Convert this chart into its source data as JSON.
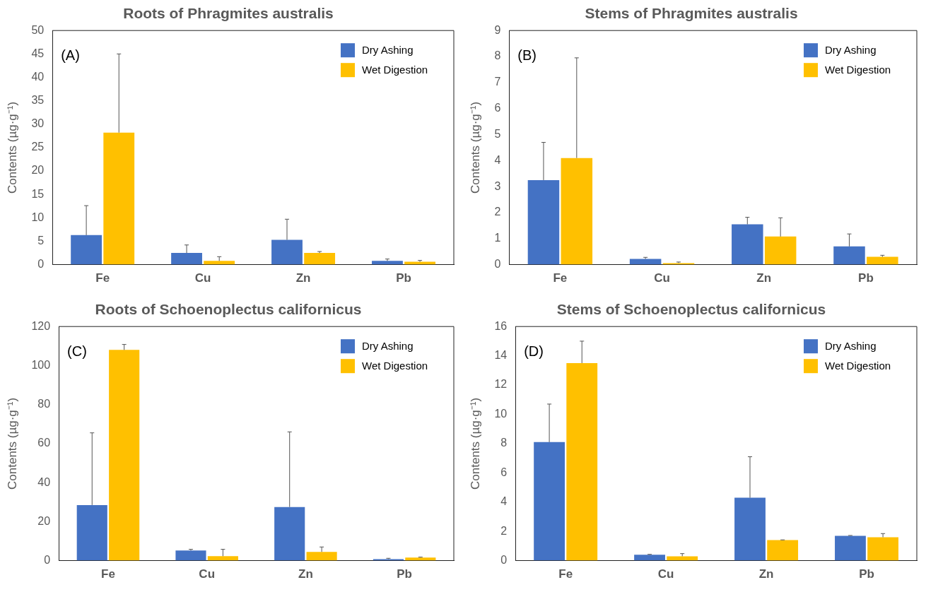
{
  "chart_data": [
    {
      "type": "bar",
      "title": "Roots of Phragmites australis",
      "ylabel": "Contents (µg·g⁻¹)",
      "annotations": [
        "(A)"
      ],
      "categories": [
        "Fe",
        "Cu",
        "Zn",
        "Pb"
      ],
      "ylim": [
        0,
        50
      ],
      "yticks": [
        0,
        5,
        10,
        15,
        20,
        25,
        30,
        35,
        40,
        45,
        50
      ],
      "grid": false,
      "legend": "top right",
      "series": [
        {
          "name": "Dry Ashing",
          "color": "#4472c4",
          "values": [
            6.3,
            2.5,
            5.3,
            0.8
          ],
          "errors": [
            [
              6.3,
              12.6
            ],
            [
              2.5,
              4.2
            ],
            [
              5.3,
              9.7
            ],
            [
              0.8,
              1.2
            ]
          ]
        },
        {
          "name": "Wet Digestion",
          "color": "#ffc000",
          "values": [
            28.2,
            0.8,
            2.5,
            0.6
          ],
          "errors": [
            [
              28.2,
              45
            ],
            [
              0.8,
              1.7
            ],
            [
              2.5,
              2.8
            ],
            [
              0.6,
              0.9
            ]
          ]
        }
      ]
    },
    {
      "type": "bar",
      "title": "Stems of Phragmites australis",
      "ylabel": "Contents (µg·g⁻¹)",
      "annotations": [
        "(B)"
      ],
      "categories": [
        "Fe",
        "Cu",
        "Zn",
        "Pb"
      ],
      "ylim": [
        0,
        9
      ],
      "yticks": [
        0,
        1,
        2,
        3,
        4,
        5,
        6,
        7,
        8,
        9
      ],
      "grid": false,
      "legend": "top right",
      "series": [
        {
          "name": "Dry Ashing",
          "color": "#4472c4",
          "values": [
            3.25,
            0.22,
            1.55,
            0.7
          ],
          "errors": [
            [
              3.25,
              4.7
            ],
            [
              0.22,
              0.28
            ],
            [
              1.55,
              1.82
            ],
            [
              0.7,
              1.18
            ]
          ]
        },
        {
          "name": "Wet Digestion",
          "color": "#ffc000",
          "values": [
            4.1,
            0.06,
            1.08,
            0.3
          ],
          "errors": [
            [
              4.1,
              7.95
            ],
            [
              0.06,
              0.1
            ],
            [
              1.08,
              1.8
            ],
            [
              0.3,
              0.36
            ]
          ]
        }
      ]
    },
    {
      "type": "bar",
      "title": "Roots of Schoenoplectus californicus",
      "ylabel": "Contents (µg·g⁻¹)",
      "annotations": [
        "(C)"
      ],
      "categories": [
        "Fe",
        "Cu",
        "Zn",
        "Pb"
      ],
      "ylim": [
        0,
        120
      ],
      "yticks": [
        0,
        20,
        40,
        60,
        80,
        100,
        120
      ],
      "grid": false,
      "legend": "top right",
      "series": [
        {
          "name": "Dry Ashing",
          "color": "#4472c4",
          "values": [
            28.5,
            5.2,
            27.5,
            0.8
          ],
          "errors": [
            [
              28.5,
              65.5
            ],
            [
              5.2,
              5.8
            ],
            [
              27.5,
              66
            ],
            [
              0.8,
              1.2
            ]
          ]
        },
        {
          "name": "Wet Digestion",
          "color": "#ffc000",
          "values": [
            108,
            2.3,
            4.5,
            1.6
          ],
          "errors": [
            [
              108,
              110.8
            ],
            [
              2.3,
              5.8
            ],
            [
              4.5,
              7
            ],
            [
              1.6,
              1.8
            ]
          ]
        }
      ]
    },
    {
      "type": "bar",
      "title": "Stems of Schoenoplectus californicus",
      "ylabel": "Contents (µg·g⁻¹)",
      "annotations": [
        "(D)"
      ],
      "categories": [
        "Fe",
        "Cu",
        "Zn",
        "Pb"
      ],
      "ylim": [
        0,
        16
      ],
      "yticks": [
        0,
        2,
        4,
        6,
        8,
        10,
        12,
        14,
        16
      ],
      "grid": false,
      "legend": "top right",
      "series": [
        {
          "name": "Dry Ashing",
          "color": "#4472c4",
          "values": [
            8.1,
            0.4,
            4.3,
            1.7
          ],
          "errors": [
            [
              8.1,
              10.7
            ],
            [
              0.4,
              0.43
            ],
            [
              4.3,
              7.1
            ],
            [
              1.7,
              1.72
            ]
          ]
        },
        {
          "name": "Wet Digestion",
          "color": "#ffc000",
          "values": [
            13.5,
            0.3,
            1.4,
            1.6
          ],
          "errors": [
            [
              13.5,
              15
            ],
            [
              0.3,
              0.48
            ],
            [
              1.4,
              1.42
            ],
            [
              1.6,
              1.85
            ]
          ]
        }
      ]
    }
  ]
}
